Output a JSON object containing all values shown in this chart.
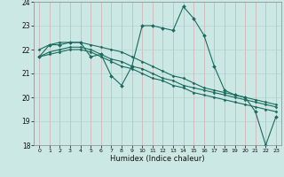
{
  "xlabel": "Humidex (Indice chaleur)",
  "background_color": "#cce8e4",
  "grid_color": "#aacfcb",
  "line_color": "#1a6b5e",
  "xlim": [
    -0.5,
    23.5
  ],
  "ylim": [
    18,
    24
  ],
  "yticks": [
    18,
    19,
    20,
    21,
    22,
    23,
    24
  ],
  "xticks": [
    0,
    1,
    2,
    3,
    4,
    5,
    6,
    7,
    8,
    9,
    10,
    11,
    12,
    13,
    14,
    15,
    16,
    17,
    18,
    19,
    20,
    21,
    22,
    23
  ],
  "series": [
    {
      "x": [
        0,
        1,
        2,
        3,
        4,
        5,
        6,
        7,
        8,
        9,
        10,
        11,
        12,
        13,
        14,
        15,
        16,
        17,
        18,
        19,
        20,
        21,
        22,
        23
      ],
      "y": [
        21.7,
        22.2,
        22.2,
        22.3,
        22.3,
        21.7,
        21.8,
        20.9,
        20.5,
        21.3,
        23.0,
        23.0,
        22.9,
        22.8,
        23.8,
        23.3,
        22.6,
        21.3,
        20.3,
        20.1,
        20.0,
        19.4,
        18.0,
        19.2
      ]
    },
    {
      "x": [
        0,
        1,
        2,
        3,
        4,
        5,
        6,
        7,
        8,
        9,
        10,
        11,
        12,
        13,
        14,
        15,
        16,
        17,
        18,
        19,
        20,
        21,
        22,
        23
      ],
      "y": [
        22.0,
        22.2,
        22.3,
        22.3,
        22.3,
        22.2,
        22.1,
        22.0,
        21.9,
        21.7,
        21.5,
        21.3,
        21.1,
        20.9,
        20.8,
        20.6,
        20.4,
        20.3,
        20.2,
        20.1,
        20.0,
        19.9,
        19.8,
        19.7
      ]
    },
    {
      "x": [
        0,
        1,
        2,
        3,
        4,
        5,
        6,
        7,
        8,
        9,
        10,
        11,
        12,
        13,
        14,
        15,
        16,
        17,
        18,
        19,
        20,
        21,
        22,
        23
      ],
      "y": [
        21.7,
        21.9,
        22.0,
        22.1,
        22.1,
        22.0,
        21.8,
        21.6,
        21.5,
        21.3,
        21.2,
        21.0,
        20.8,
        20.7,
        20.5,
        20.4,
        20.3,
        20.2,
        20.1,
        20.0,
        19.9,
        19.8,
        19.7,
        19.6
      ]
    },
    {
      "x": [
        0,
        1,
        2,
        3,
        4,
        5,
        6,
        7,
        8,
        9,
        10,
        11,
        12,
        13,
        14,
        15,
        16,
        17,
        18,
        19,
        20,
        21,
        22,
        23
      ],
      "y": [
        21.7,
        21.8,
        21.9,
        22.0,
        22.0,
        21.9,
        21.7,
        21.5,
        21.3,
        21.2,
        21.0,
        20.8,
        20.7,
        20.5,
        20.4,
        20.2,
        20.1,
        20.0,
        19.9,
        19.8,
        19.7,
        19.6,
        19.5,
        19.4
      ]
    }
  ]
}
